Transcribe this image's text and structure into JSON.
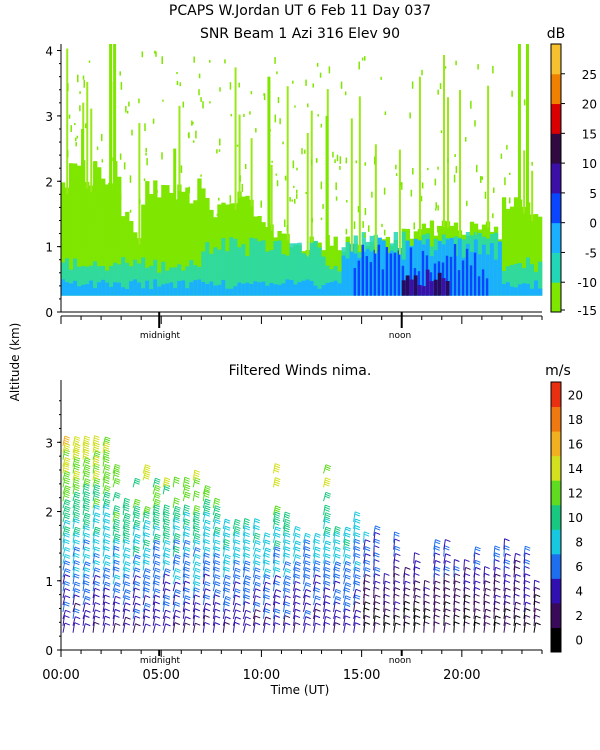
{
  "header": {
    "title_line1": "PCAPS W.Jordan UT   6 Feb 11 Day 037",
    "title_line2": "SNR Beam 1 Azi 316 Elev 90"
  },
  "shared": {
    "ylabel": "Altitude (km)",
    "xlabel": "Time (UT)",
    "marker_midnight": "midnight",
    "marker_noon": "noon"
  },
  "chart_data": [
    {
      "type": "heatmap",
      "title": "SNR Beam 1 Azi 316 Elev 90",
      "ylabel": "Altitude (km)",
      "xlim": [
        0,
        24
      ],
      "ylim": [
        0,
        4.1
      ],
      "yticks": [
        "0",
        "1",
        "2",
        "3",
        "4"
      ],
      "colorbar": {
        "unit": "dB",
        "range": [
          -15,
          30
        ],
        "ticks": [
          "-15",
          "-10",
          "-5",
          "0",
          "5",
          "10",
          "15",
          "20",
          "25"
        ],
        "colors": [
          "#7fe600",
          "#22d6b8",
          "#1ab0ff",
          "#0a46ff",
          "#3a10a8",
          "#300a40",
          "#d80000",
          "#f08000",
          "#f7c030"
        ]
      },
      "markers": {
        "midnight_hour": 4.9,
        "noon_hour": 17.0
      },
      "regions": [
        {
          "x": [
            0,
            24
          ],
          "y": [
            0.25,
            1.4
          ],
          "level": "green"
        },
        {
          "x": [
            0,
            24
          ],
          "y": [
            0.25,
            0.9
          ],
          "level": "teal"
        },
        {
          "x": [
            0,
            24
          ],
          "y": [
            0.25,
            0.4
          ],
          "level": "cyan"
        },
        {
          "x": [
            14,
            21.5
          ],
          "y": [
            0.25,
            1.2
          ],
          "level": "blue"
        },
        {
          "x": [
            17,
            19.5
          ],
          "y": [
            0.25,
            0.7
          ],
          "level": "purple"
        }
      ]
    },
    {
      "type": "scatter",
      "title": "Filtered Winds nima.",
      "xlabel": "Time (UT)",
      "ylabel": "Altitude (km)",
      "xlim": [
        0,
        24
      ],
      "ylim": [
        0,
        3.9
      ],
      "xticks": [
        "00:00",
        "05:00",
        "10:00",
        "15:00",
        "20:00"
      ],
      "yticks": [
        "0",
        "1",
        "2",
        "3"
      ],
      "colorbar": {
        "unit": "m/s",
        "range": [
          0,
          22
        ],
        "ticks": [
          "0",
          "2",
          "4",
          "6",
          "8",
          "10",
          "12",
          "14",
          "16",
          "18",
          "20"
        ],
        "colors": [
          "#000000",
          "#3a0a5a",
          "#3010b0",
          "#1e6ef0",
          "#18c8e0",
          "#18c880",
          "#60dc20",
          "#d2e020",
          "#f0b020",
          "#f07810",
          "#e83010"
        ]
      },
      "markers": {
        "midnight_hour": 4.9,
        "noon_hour": 17.0
      },
      "description_series": "wind barbs at ~0.5 h intervals, 0.2-3.0 km altitude; speed increases with altitude from ~4 m/s near surface to ~16 m/s near 3 km"
    }
  ]
}
